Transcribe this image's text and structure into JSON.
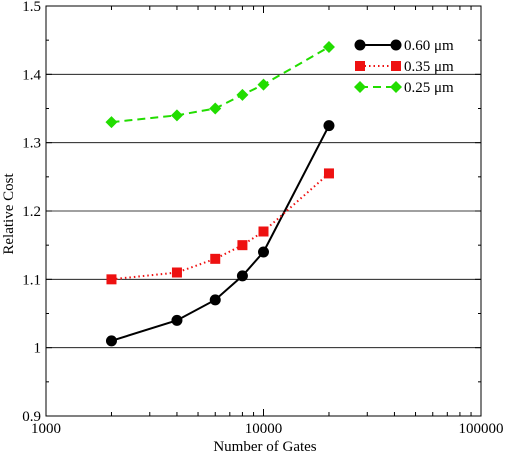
{
  "chart_data": {
    "type": "line",
    "xscale": "log",
    "xlim": [
      1000,
      100000
    ],
    "ylim": [
      0.9,
      1.5
    ],
    "xlabel": "Number of Gates",
    "ylabel": "Relative Cost",
    "xticks": [
      1000,
      10000,
      100000
    ],
    "xtick_labels": [
      "1000",
      "10000",
      "100000"
    ],
    "yticks": [
      0.9,
      1.0,
      1.1,
      1.2,
      1.3,
      1.4,
      1.5
    ],
    "ytick_labels": [
      "0.9",
      "1",
      "1.1",
      "1.2",
      "1.3",
      "1.4",
      "1.5"
    ],
    "grid": "horizontal",
    "legend_position": "top-right",
    "series": [
      {
        "name": "0.60 μm",
        "color": "#000000",
        "line": "solid",
        "marker": "circle",
        "x": [
          2000,
          4000,
          6000,
          8000,
          10000,
          20000
        ],
        "y": [
          1.01,
          1.04,
          1.07,
          1.105,
          1.14,
          1.325
        ]
      },
      {
        "name": "0.35 μm",
        "color": "#ee1111",
        "line": "dotted",
        "marker": "square",
        "x": [
          2000,
          4000,
          6000,
          8000,
          10000,
          20000
        ],
        "y": [
          1.1,
          1.11,
          1.13,
          1.15,
          1.17,
          1.255
        ]
      },
      {
        "name": "0.25 μm",
        "color": "#22dd00",
        "line": "dashed",
        "marker": "diamond",
        "x": [
          2000,
          4000,
          6000,
          8000,
          10000,
          20000
        ],
        "y": [
          1.33,
          1.34,
          1.35,
          1.37,
          1.385,
          1.44
        ]
      }
    ]
  }
}
